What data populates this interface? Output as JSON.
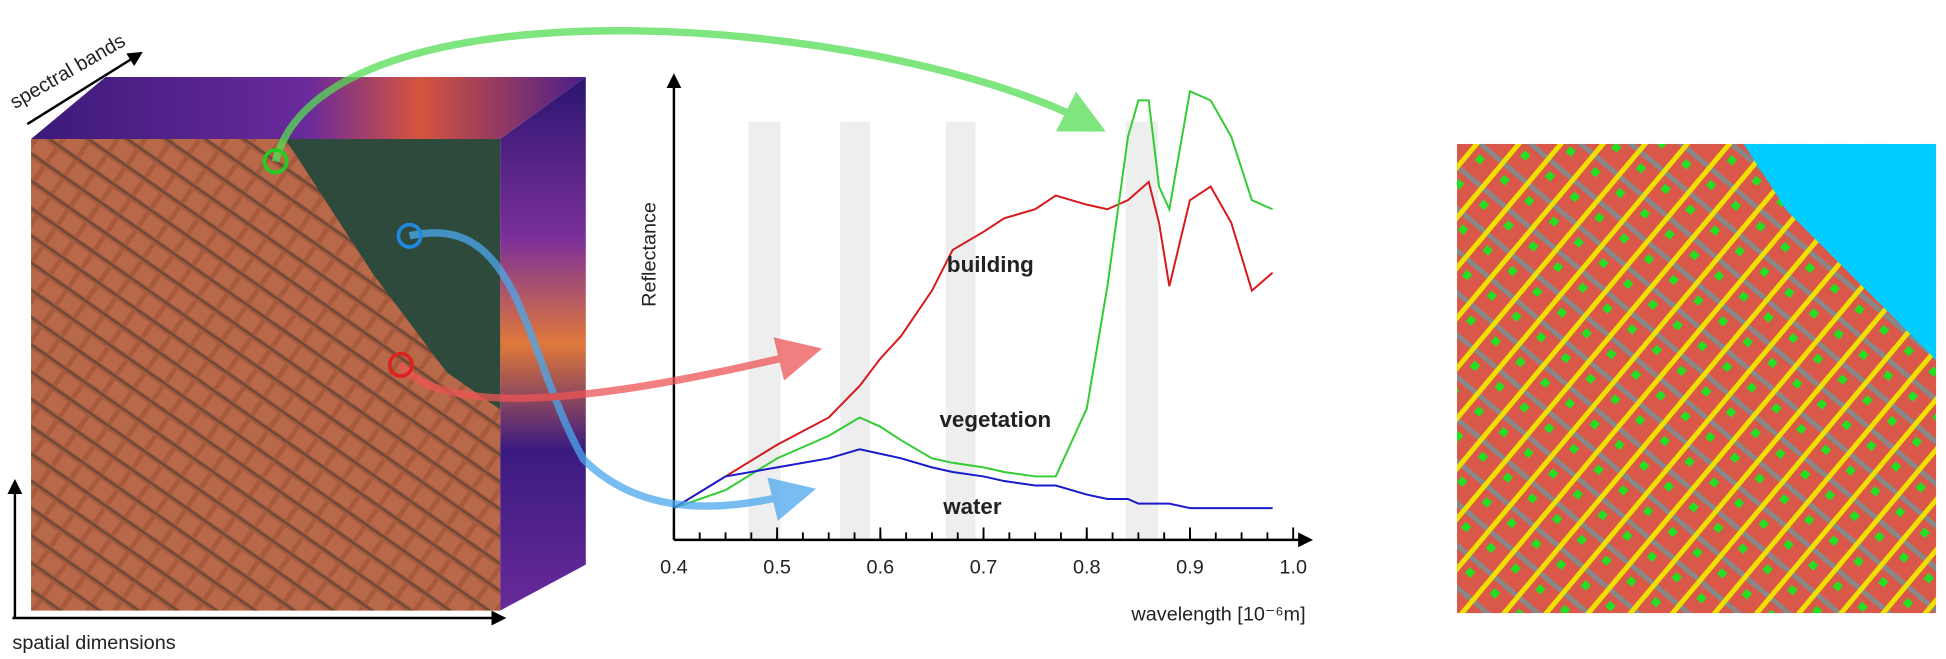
{
  "labels": {
    "spectral_bands": "spectral bands",
    "spatial_dimensions": "spatial dimensions"
  },
  "chart_data": {
    "type": "line",
    "ylabel": "Reflectance",
    "xlabel": "wavelength [10⁻⁶m]",
    "x": [
      0.4,
      0.45,
      0.5,
      0.55,
      0.58,
      0.6,
      0.62,
      0.65,
      0.67,
      0.7,
      0.72,
      0.75,
      0.77,
      0.8,
      0.82,
      0.84,
      0.85,
      0.86,
      0.87,
      0.88,
      0.9,
      0.92,
      0.94,
      0.96,
      0.98
    ],
    "series": [
      {
        "name": "building",
        "color": "#d7191c",
        "values": [
          0.07,
          0.14,
          0.21,
          0.27,
          0.34,
          0.4,
          0.45,
          0.55,
          0.64,
          0.68,
          0.71,
          0.73,
          0.76,
          0.74,
          0.73,
          0.75,
          0.77,
          0.79,
          0.7,
          0.56,
          0.75,
          0.78,
          0.7,
          0.55,
          0.59
        ]
      },
      {
        "name": "vegetation",
        "color": "#33cc33",
        "values": [
          0.07,
          0.11,
          0.18,
          0.23,
          0.27,
          0.25,
          0.22,
          0.18,
          0.17,
          0.16,
          0.15,
          0.14,
          0.14,
          0.29,
          0.56,
          0.89,
          0.97,
          0.97,
          0.78,
          0.73,
          0.99,
          0.97,
          0.89,
          0.75,
          0.73
        ]
      },
      {
        "name": "water",
        "color": "#1a1acc",
        "values": [
          0.07,
          0.14,
          0.16,
          0.18,
          0.2,
          0.19,
          0.18,
          0.16,
          0.15,
          0.14,
          0.13,
          0.12,
          0.12,
          0.1,
          0.09,
          0.09,
          0.08,
          0.08,
          0.08,
          0.08,
          0.07,
          0.07,
          0.07,
          0.07,
          0.07
        ]
      }
    ],
    "xlim": [
      0.4,
      1.0
    ],
    "ylim": [
      0,
      1
    ],
    "xticks": [
      0.4,
      0.5,
      0.6,
      0.7,
      0.8,
      0.9,
      {
        "value": 1,
        "label": "1.0"
      }
    ],
    "yticks": []
  }
}
